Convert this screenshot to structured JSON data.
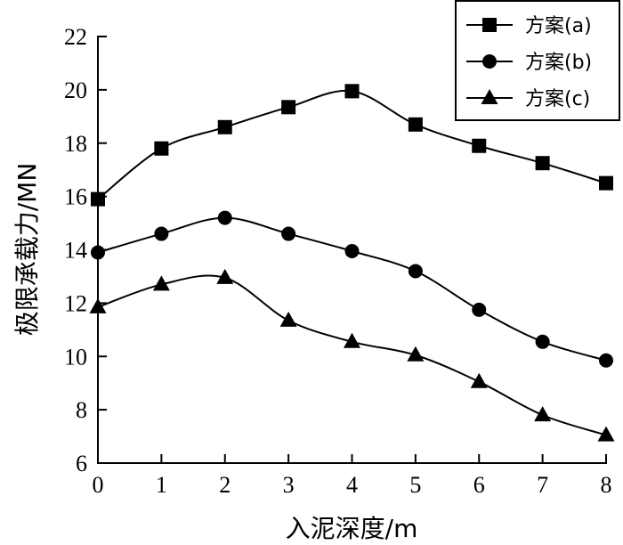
{
  "chart_data": {
    "type": "line",
    "title": "",
    "xlabel": "入泥深度/m",
    "ylabel": "极限承载力/MN",
    "x": [
      0,
      1,
      2,
      3,
      4,
      5,
      6,
      7,
      8
    ],
    "xlim": [
      0,
      8
    ],
    "ylim": [
      6,
      22
    ],
    "xticks": [
      "0",
      "1",
      "2",
      "3",
      "4",
      "5",
      "6",
      "7",
      "8"
    ],
    "yticks": [
      "6",
      "8",
      "10",
      "12",
      "14",
      "16",
      "18",
      "20",
      "22"
    ],
    "grid": false,
    "legend_position": "top-right",
    "series": [
      {
        "name": "方案(a)",
        "marker": "square",
        "values": [
          15.9,
          17.8,
          18.6,
          19.35,
          19.95,
          18.7,
          17.9,
          17.25,
          16.5
        ]
      },
      {
        "name": "方案(b)",
        "marker": "circle",
        "values": [
          13.9,
          14.6,
          15.2,
          14.6,
          13.95,
          13.2,
          11.75,
          10.55,
          9.85
        ]
      },
      {
        "name": "方案(c)",
        "marker": "triangle",
        "values": [
          11.85,
          12.7,
          12.95,
          11.35,
          10.55,
          10.05,
          9.05,
          7.8,
          7.05
        ]
      }
    ]
  }
}
